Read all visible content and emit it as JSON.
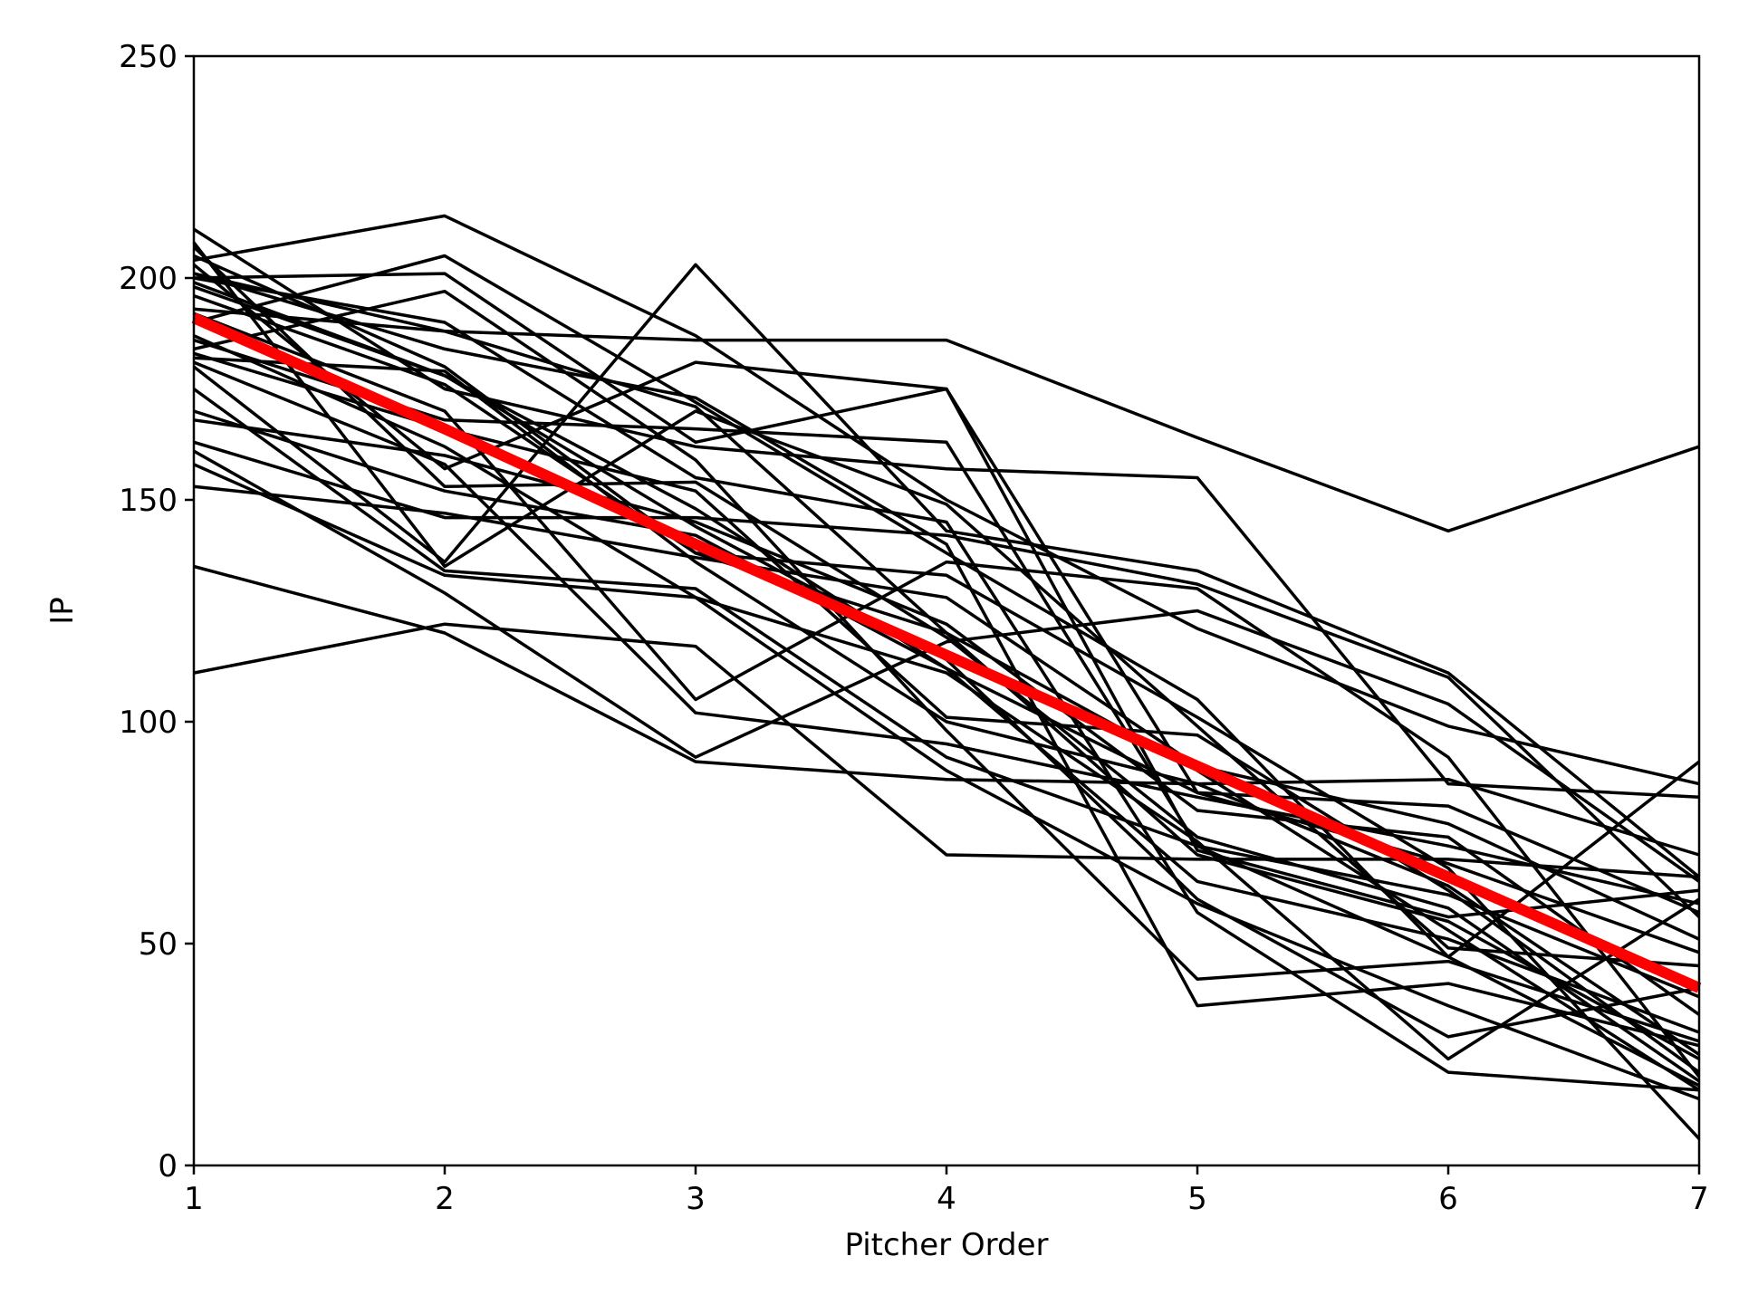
{
  "chart_data": {
    "type": "line",
    "title": "",
    "xlabel": "Pitcher Order",
    "ylabel": "IP",
    "xlim": [
      1,
      7
    ],
    "ylim": [
      0,
      250
    ],
    "x": [
      1,
      2,
      3,
      4,
      5,
      6,
      7
    ],
    "xticks": [
      "1",
      "2",
      "3",
      "4",
      "5",
      "6",
      "7"
    ],
    "yticks": [
      "0",
      "50",
      "100",
      "150",
      "200",
      "250"
    ],
    "grid": false,
    "legend": "none",
    "colors": {
      "series": "#000000",
      "mean": "#ff0000",
      "axes": "#000000"
    },
    "series": [
      {
        "values": [
          204,
          214,
          187,
          150,
          121,
          99,
          86
        ]
      },
      {
        "values": [
          211,
          175,
          162,
          157,
          155,
          86,
          83
        ]
      },
      {
        "values": [
          200,
          201,
          163,
          175,
          84,
          81,
          57
        ]
      },
      {
        "values": [
          201,
          188,
          186,
          186,
          164,
          143,
          162
        ]
      },
      {
        "values": [
          180,
          136,
          203,
          143,
          134,
          111,
          65
        ]
      },
      {
        "values": [
          111,
          122,
          117,
          70,
          69,
          69,
          65
        ]
      },
      {
        "values": [
          135,
          120,
          91,
          87,
          86,
          87,
          70
        ]
      },
      {
        "values": [
          203,
          157,
          181,
          175,
          71,
          56,
          62
        ]
      },
      {
        "values": [
          190,
          205,
          172,
          138,
          105,
          47,
          91
        ]
      },
      {
        "values": [
          163,
          146,
          146,
          142,
          131,
          110,
          56
        ]
      },
      {
        "values": [
          153,
          147,
          137,
          128,
          90,
          77,
          51
        ]
      },
      {
        "values": [
          208,
          135,
          170,
          149,
          99,
          49,
          45
        ]
      },
      {
        "values": [
          161,
          129,
          92,
          118,
          125,
          104,
          64
        ]
      },
      {
        "values": [
          182,
          179,
          136,
          100,
          86,
          63,
          25
        ]
      },
      {
        "values": [
          192,
          170,
          105,
          136,
          130,
          92,
          20
        ]
      },
      {
        "values": [
          205,
          180,
          138,
          120,
          70,
          55,
          24
        ]
      },
      {
        "values": [
          186,
          168,
          166,
          163,
          72,
          61,
          38
        ]
      },
      {
        "values": [
          175,
          134,
          130,
          92,
          72,
          47,
          18
        ]
      },
      {
        "values": [
          158,
          133,
          128,
          89,
          59,
          36,
          15
        ]
      },
      {
        "values": [
          198,
          178,
          148,
          112,
          64,
          51,
          30
        ]
      },
      {
        "values": [
          168,
          160,
          145,
          122,
          80,
          74,
          34
        ]
      },
      {
        "values": [
          193,
          188,
          171,
          120,
          89,
          53,
          17
        ]
      },
      {
        "values": [
          184,
          197,
          159,
          98,
          42,
          46,
          28
        ]
      },
      {
        "values": [
          201,
          184,
          173,
          140,
          36,
          41,
          27
        ]
      },
      {
        "values": [
          183,
          166,
          152,
          101,
          97,
          62,
          21
        ]
      },
      {
        "values": [
          207,
          153,
          154,
          119,
          74,
          58,
          19
        ]
      },
      {
        "values": [
          196,
          176,
          138,
          133,
          101,
          67,
          6
        ]
      },
      {
        "values": [
          181,
          158,
          102,
          95,
          83,
          72,
          59
        ]
      },
      {
        "values": [
          187,
          162,
          128,
          111,
          73,
          24,
          60
        ]
      },
      {
        "values": [
          199,
          178,
          144,
          114,
          60,
          29,
          40
        ]
      },
      {
        "values": [
          200,
          190,
          155,
          145,
          57,
          21,
          17
        ]
      },
      {
        "values": [
          170,
          152,
          142,
          112,
          84,
          68,
          48
        ]
      }
    ],
    "mean_line": {
      "values": [
        191,
        166,
        140,
        115,
        90,
        65,
        40
      ]
    }
  }
}
